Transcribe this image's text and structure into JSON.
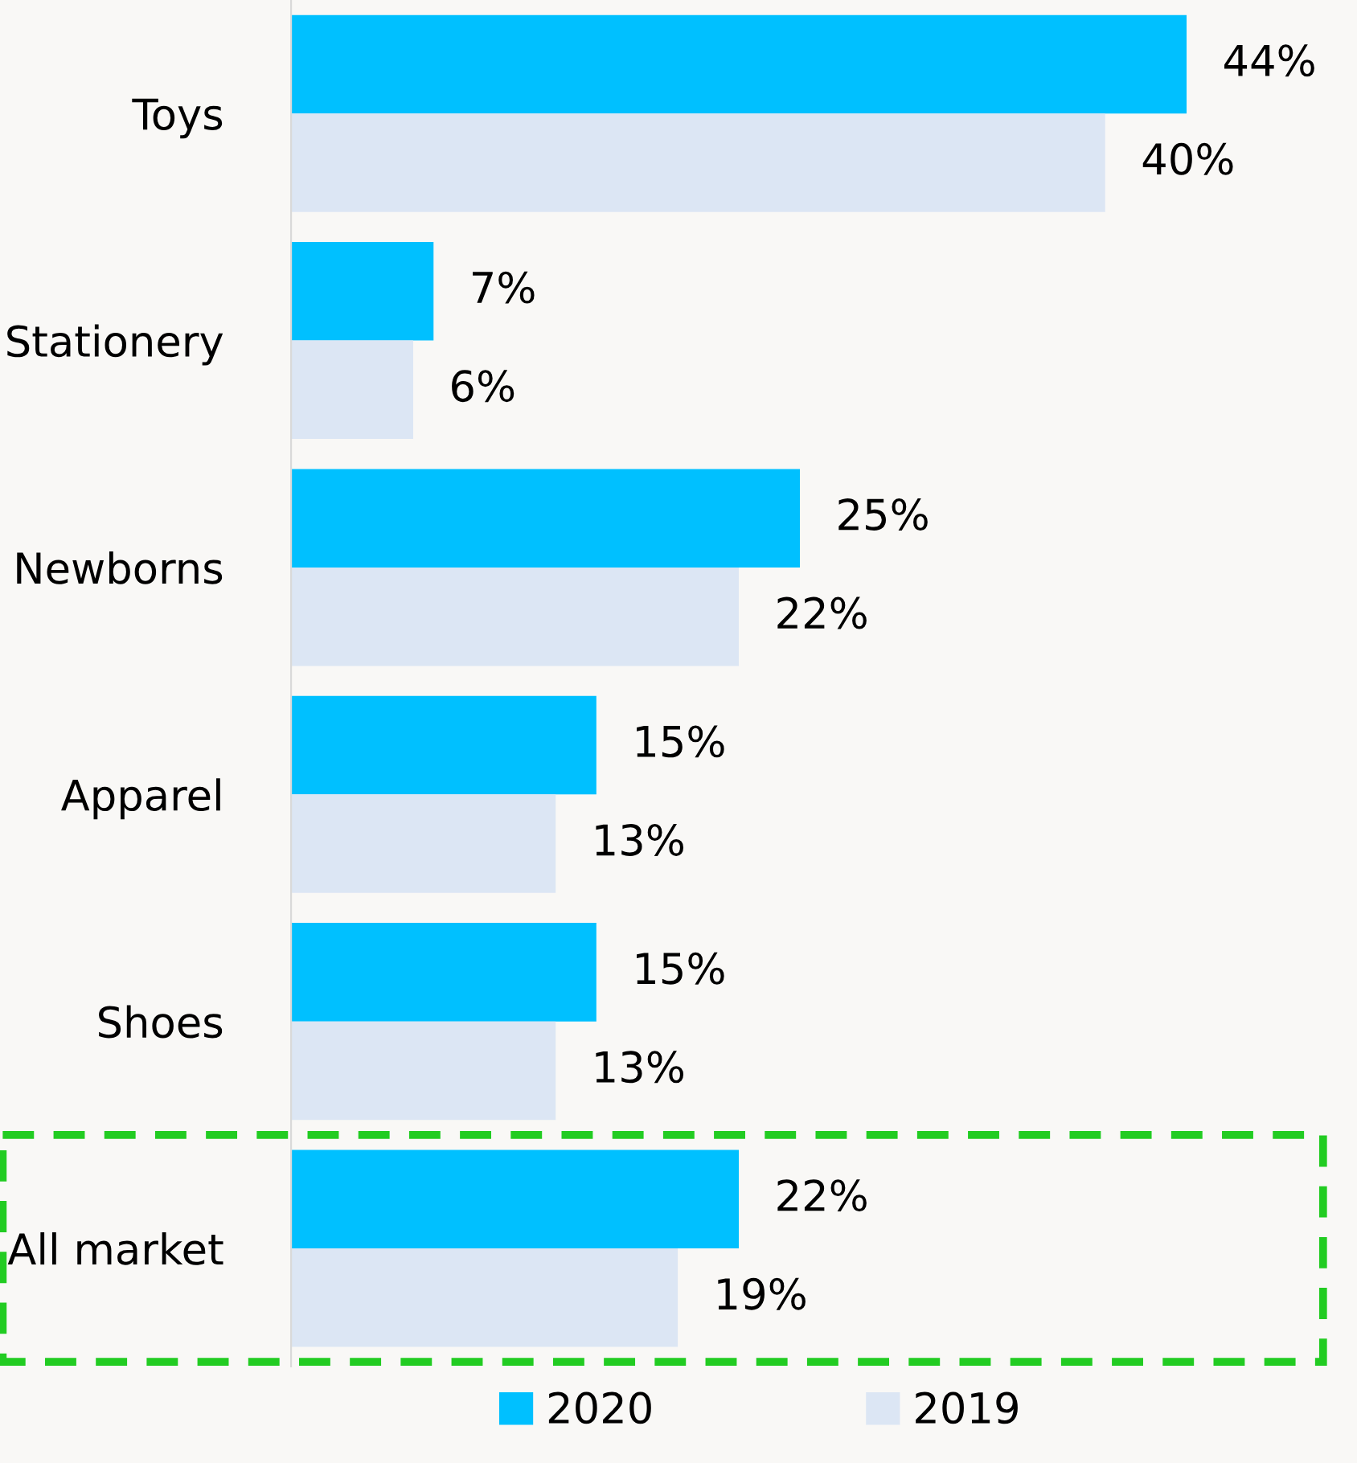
{
  "chart_data": {
    "type": "bar",
    "orientation": "horizontal",
    "categories": [
      "Toys",
      "Stationery",
      "Newborns",
      "Apparel",
      "Shoes",
      "All market"
    ],
    "series": [
      {
        "name": "2020",
        "color": "#00c0ff",
        "values": [
          44,
          7,
          25,
          15,
          15,
          22
        ],
        "value_labels": [
          "44%",
          "7%",
          "25%",
          "15%",
          "15%",
          "22%"
        ]
      },
      {
        "name": "2019",
        "color": "#dce6f4",
        "values": [
          40,
          6,
          22,
          13,
          13,
          19
        ],
        "value_labels": [
          "40%",
          "6%",
          "22%",
          "13%",
          "13%",
          "19%"
        ]
      }
    ],
    "legend": "bottom",
    "grid": false,
    "tick_labels": "y"
  }
}
